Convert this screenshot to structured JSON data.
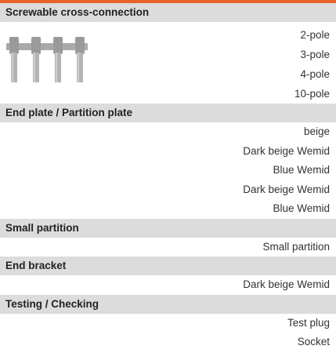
{
  "sections": [
    {
      "title": "Screwable cross-connection",
      "items": [
        "2-pole",
        "3-pole",
        "4-pole",
        "10-pole"
      ]
    },
    {
      "title": "End plate / Partition plate",
      "items": [
        "beige",
        "Dark beige Wemid",
        "Blue Wemid",
        "Dark beige Wemid",
        "Blue Wemid"
      ]
    },
    {
      "title": "Small partition",
      "items": [
        "Small partition"
      ]
    },
    {
      "title": "End bracket",
      "items": [
        "Dark beige Wemid"
      ]
    },
    {
      "title": "Testing / Checking",
      "items": [
        "Test plug",
        "Socket"
      ]
    }
  ]
}
